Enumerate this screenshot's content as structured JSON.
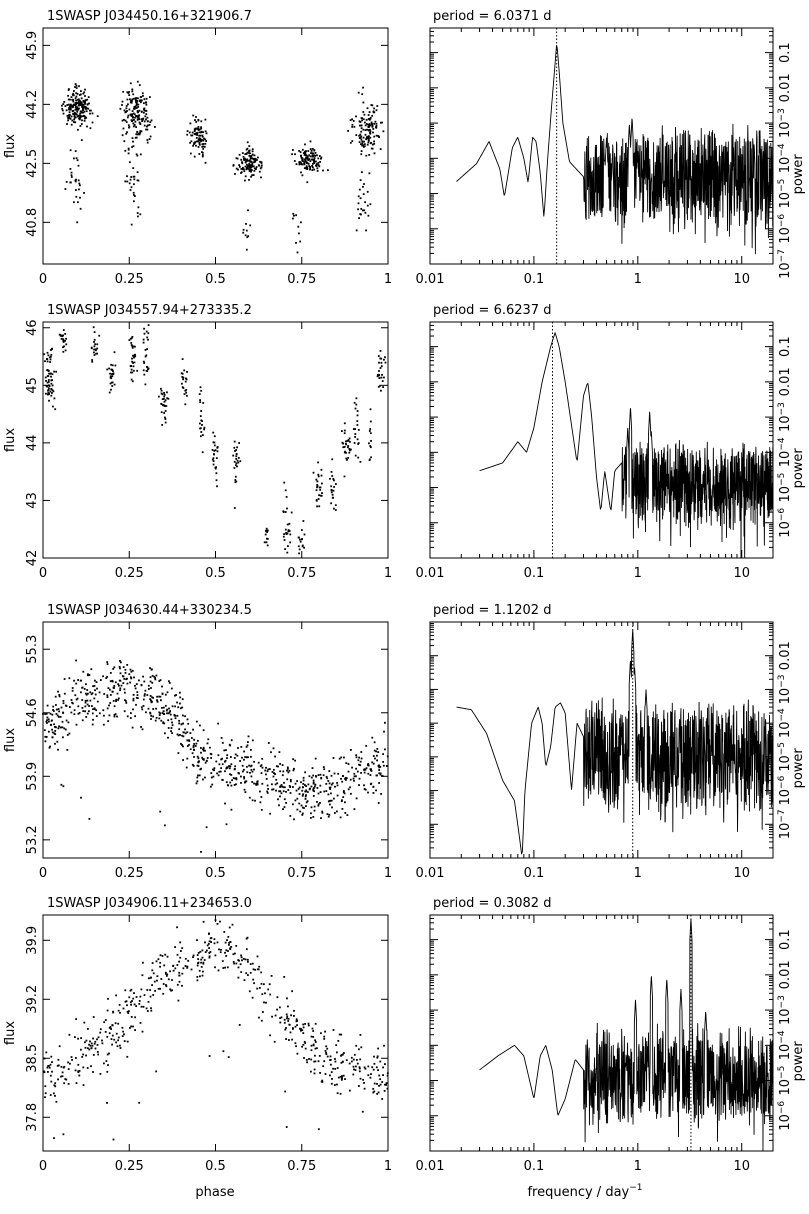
{
  "figure": {
    "x_label_left": "phase",
    "x_label_right_main": "frequency / day",
    "x_label_right_sup": "−1"
  },
  "chart_data": [
    {
      "type": "scatter",
      "title": "1SWASP  J034450.16+321906.7",
      "xlabel": "",
      "ylabel": "flux",
      "xlim": [
        0,
        1
      ],
      "ylim": [
        39.6,
        46.4
      ],
      "yticks": [
        40.8,
        42.5,
        44.2,
        45.9
      ],
      "xticks": [
        0,
        0.25,
        0.5,
        0.75,
        1
      ],
      "clusters": [
        {
          "x": 0.1,
          "y": 44.1,
          "sx": 0.03,
          "sy": 0.35,
          "n": 190
        },
        {
          "x": 0.09,
          "y": 41.8,
          "sx": 0.02,
          "sy": 0.8,
          "n": 30
        },
        {
          "x": 0.27,
          "y": 44.0,
          "sx": 0.03,
          "sy": 0.5,
          "n": 160
        },
        {
          "x": 0.26,
          "y": 42.2,
          "sx": 0.02,
          "sy": 1.0,
          "n": 40
        },
        {
          "x": 0.45,
          "y": 43.3,
          "sx": 0.02,
          "sy": 0.35,
          "n": 90
        },
        {
          "x": 0.6,
          "y": 42.5,
          "sx": 0.025,
          "sy": 0.3,
          "n": 120
        },
        {
          "x": 0.59,
          "y": 40.4,
          "sx": 0.01,
          "sy": 0.4,
          "n": 10
        },
        {
          "x": 0.77,
          "y": 42.6,
          "sx": 0.025,
          "sy": 0.3,
          "n": 120
        },
        {
          "x": 0.74,
          "y": 40.6,
          "sx": 0.01,
          "sy": 0.5,
          "n": 10
        },
        {
          "x": 0.94,
          "y": 43.5,
          "sx": 0.03,
          "sy": 0.55,
          "n": 130
        },
        {
          "x": 0.93,
          "y": 41.2,
          "sx": 0.02,
          "sy": 0.8,
          "n": 25
        }
      ]
    },
    {
      "type": "line",
      "title": "period =     6.0371  d",
      "xlabel": "",
      "ylabel": "power",
      "xscale": "log",
      "yscale": "log",
      "xlim": [
        0.01,
        20
      ],
      "ylim": [
        1e-07,
        0.5
      ],
      "xticks": [
        0.01,
        0.1,
        1,
        10
      ],
      "xticklabels": [
        "0.01",
        "0.1",
        "1",
        "10"
      ],
      "yticks": [
        1e-07,
        1e-06,
        1e-05,
        0.0001,
        0.001,
        0.01,
        0.1
      ],
      "period_marker": 0.1656,
      "smooth_control": [
        [
          0.018,
          2.2e-05
        ],
        [
          0.028,
          7e-05
        ],
        [
          0.037,
          0.0003
        ],
        [
          0.047,
          5e-05
        ],
        [
          0.052,
          8e-06
        ],
        [
          0.062,
          0.0002
        ],
        [
          0.07,
          0.0004
        ],
        [
          0.08,
          0.0001
        ],
        [
          0.088,
          2e-05
        ],
        [
          0.097,
          0.0004
        ],
        [
          0.105,
          0.0003
        ],
        [
          0.115,
          4e-05
        ],
        [
          0.125,
          2e-06
        ],
        [
          0.135,
          8e-05
        ],
        [
          0.148,
          0.003
        ],
        [
          0.16,
          0.05
        ],
        [
          0.166,
          0.2
        ],
        [
          0.175,
          0.03
        ],
        [
          0.19,
          0.001
        ],
        [
          0.22,
          8e-05
        ],
        [
          0.3,
          3e-05
        ]
      ],
      "noise_from": 0.3,
      "noise_level": 3e-05,
      "noise_spread": 1.6,
      "spikes": [
        [
          0.48,
          0.0001
        ],
        [
          0.5,
          0.0004
        ],
        [
          0.57,
          0.0001
        ],
        [
          0.83,
          0.001
        ],
        [
          0.88,
          0.0015
        ],
        [
          1.0,
          0.0001
        ]
      ]
    },
    {
      "type": "scatter",
      "title": "1SWASP  J034557.94+273335.2",
      "xlabel": "",
      "ylabel": "flux",
      "xlim": [
        0,
        1
      ],
      "ylim": [
        42,
        46.1
      ],
      "yticks": [
        42,
        43,
        44,
        45,
        46
      ],
      "xticks": [
        0,
        0.25,
        0.5,
        0.75,
        1
      ],
      "clusters": [
        {
          "x": 0.02,
          "y": 45.1,
          "sx": 0.01,
          "sy": 0.35,
          "n": 60
        },
        {
          "x": 0.06,
          "y": 45.8,
          "sx": 0.007,
          "sy": 0.15,
          "n": 20
        },
        {
          "x": 0.15,
          "y": 45.7,
          "sx": 0.008,
          "sy": 0.2,
          "n": 20
        },
        {
          "x": 0.2,
          "y": 45.2,
          "sx": 0.008,
          "sy": 0.25,
          "n": 25
        },
        {
          "x": 0.26,
          "y": 45.5,
          "sx": 0.008,
          "sy": 0.3,
          "n": 30
        },
        {
          "x": 0.3,
          "y": 45.5,
          "sx": 0.007,
          "sy": 0.4,
          "n": 25
        },
        {
          "x": 0.35,
          "y": 44.7,
          "sx": 0.01,
          "sy": 0.2,
          "n": 30
        },
        {
          "x": 0.41,
          "y": 45.1,
          "sx": 0.008,
          "sy": 0.3,
          "n": 20
        },
        {
          "x": 0.46,
          "y": 44.5,
          "sx": 0.008,
          "sy": 0.4,
          "n": 20
        },
        {
          "x": 0.5,
          "y": 43.8,
          "sx": 0.008,
          "sy": 0.3,
          "n": 25
        },
        {
          "x": 0.56,
          "y": 43.6,
          "sx": 0.008,
          "sy": 0.4,
          "n": 25
        },
        {
          "x": 0.65,
          "y": 42.4,
          "sx": 0.005,
          "sy": 0.1,
          "n": 12
        },
        {
          "x": 0.71,
          "y": 42.6,
          "sx": 0.008,
          "sy": 0.4,
          "n": 25
        },
        {
          "x": 0.75,
          "y": 42.3,
          "sx": 0.008,
          "sy": 0.25,
          "n": 15
        },
        {
          "x": 0.8,
          "y": 43.2,
          "sx": 0.008,
          "sy": 0.3,
          "n": 25
        },
        {
          "x": 0.84,
          "y": 43.1,
          "sx": 0.008,
          "sy": 0.4,
          "n": 20
        },
        {
          "x": 0.88,
          "y": 43.9,
          "sx": 0.008,
          "sy": 0.3,
          "n": 30
        },
        {
          "x": 0.91,
          "y": 44.1,
          "sx": 0.007,
          "sy": 0.5,
          "n": 20
        },
        {
          "x": 0.95,
          "y": 44.0,
          "sx": 0.006,
          "sy": 0.3,
          "n": 12
        },
        {
          "x": 0.98,
          "y": 45.3,
          "sx": 0.008,
          "sy": 0.3,
          "n": 25
        }
      ]
    },
    {
      "type": "line",
      "title": "period =     6.6237  d",
      "xlabel": "",
      "ylabel": "power",
      "xscale": "log",
      "yscale": "log",
      "xlim": [
        0.01,
        20
      ],
      "ylim": [
        1e-07,
        0.5
      ],
      "xticks": [
        0.01,
        0.1,
        1,
        10
      ],
      "xticklabels": [
        "0.01",
        "0.1",
        "1",
        "10"
      ],
      "yticks": [
        1e-06,
        1e-05,
        0.0001,
        0.001,
        0.01,
        0.1
      ],
      "period_marker": 0.151,
      "smooth_control": [
        [
          0.03,
          3e-05
        ],
        [
          0.05,
          5e-05
        ],
        [
          0.07,
          0.0002
        ],
        [
          0.085,
          0.0001
        ],
        [
          0.1,
          0.0005
        ],
        [
          0.12,
          0.01
        ],
        [
          0.145,
          0.1
        ],
        [
          0.16,
          0.25
        ],
        [
          0.175,
          0.1
        ],
        [
          0.2,
          0.01
        ],
        [
          0.23,
          0.0006
        ],
        [
          0.26,
          5e-05
        ],
        [
          0.3,
          0.004
        ],
        [
          0.33,
          0.01
        ],
        [
          0.36,
          0.001
        ],
        [
          0.4,
          2e-05
        ],
        [
          0.44,
          2e-06
        ],
        [
          0.48,
          3e-05
        ],
        [
          0.55,
          2e-06
        ],
        [
          0.6,
          3e-05
        ],
        [
          0.7,
          5e-05
        ]
      ],
      "noise_from": 0.7,
      "noise_level": 1.5e-05,
      "noise_spread": 1.3,
      "spikes": [
        [
          0.8,
          0.0005
        ],
        [
          0.85,
          0.002
        ],
        [
          1.3,
          0.0015
        ],
        [
          1.35,
          0.0004
        ]
      ]
    },
    {
      "type": "scatter",
      "title": "1SWASP  J034630.44+330234.5",
      "xlabel": "",
      "ylabel": "flux",
      "xlim": [
        0,
        1
      ],
      "ylim": [
        53.0,
        55.6
      ],
      "yticks": [
        53.2,
        53.9,
        54.6,
        55.3
      ],
      "xticks": [
        0,
        0.25,
        0.5,
        0.75,
        1
      ],
      "trend": [
        [
          0,
          54.45
        ],
        [
          0.1,
          54.7
        ],
        [
          0.22,
          54.9
        ],
        [
          0.3,
          54.8
        ],
        [
          0.4,
          54.5
        ],
        [
          0.45,
          54.1
        ],
        [
          0.55,
          53.95
        ],
        [
          0.65,
          53.95
        ],
        [
          0.75,
          53.75
        ],
        [
          0.85,
          53.75
        ],
        [
          0.95,
          54.0
        ],
        [
          1.0,
          54.1
        ]
      ],
      "scatter_sd": 0.28,
      "n_points": 900
    },
    {
      "type": "line",
      "title": "period =     1.1202  d",
      "xlabel": "",
      "ylabel": "power",
      "xscale": "log",
      "yscale": "log",
      "xlim": [
        0.01,
        20
      ],
      "ylim": [
        1e-08,
        0.1
      ],
      "xticks": [
        0.01,
        0.1,
        1,
        10
      ],
      "xticklabels": [
        "0.01",
        "0.1",
        "1",
        "10"
      ],
      "yticks": [
        1e-07,
        1e-06,
        1e-05,
        0.0001,
        0.001,
        0.01
      ],
      "period_marker": 0.893,
      "smooth_control": [
        [
          0.018,
          0.0003
        ],
        [
          0.025,
          0.00025
        ],
        [
          0.035,
          5e-05
        ],
        [
          0.05,
          2e-06
        ],
        [
          0.065,
          5e-07
        ],
        [
          0.072,
          5e-08
        ],
        [
          0.077,
          1e-08
        ],
        [
          0.082,
          1e-06
        ],
        [
          0.095,
          0.0001
        ],
        [
          0.11,
          0.0003
        ],
        [
          0.12,
          0.0001
        ],
        [
          0.13,
          5e-06
        ],
        [
          0.145,
          2e-05
        ],
        [
          0.16,
          0.0003
        ],
        [
          0.18,
          0.0004
        ],
        [
          0.2,
          0.0002
        ],
        [
          0.23,
          1e-06
        ],
        [
          0.26,
          0.0001
        ],
        [
          0.3,
          4e-05
        ]
      ],
      "noise_from": 0.3,
      "noise_level": 1.2e-05,
      "noise_spread": 1.8,
      "spikes": [
        [
          0.85,
          0.008
        ],
        [
          0.893,
          0.06
        ],
        [
          0.93,
          0.005
        ],
        [
          1.2,
          0.001
        ]
      ]
    },
    {
      "type": "scatter",
      "title": "1SWASP  J034906.11+234653.0",
      "xlabel": "",
      "ylabel": "flux",
      "xlim": [
        0,
        1
      ],
      "ylim": [
        37.4,
        40.2
      ],
      "yticks": [
        37.8,
        38.5,
        39.2,
        39.9
      ],
      "xticks": [
        0,
        0.25,
        0.5,
        0.75,
        1
      ],
      "trend": [
        [
          0,
          38.3
        ],
        [
          0.1,
          38.45
        ],
        [
          0.2,
          38.8
        ],
        [
          0.3,
          39.3
        ],
        [
          0.4,
          39.6
        ],
        [
          0.5,
          39.85
        ],
        [
          0.6,
          39.6
        ],
        [
          0.7,
          39.0
        ],
        [
          0.8,
          38.5
        ],
        [
          0.9,
          38.4
        ],
        [
          1.0,
          38.3
        ]
      ],
      "scatter_sd": 0.3,
      "n_points": 600
    },
    {
      "type": "line",
      "title": "period =     0.3082  d",
      "xlabel": "",
      "ylabel": "power",
      "xscale": "log",
      "yscale": "log",
      "xlim": [
        0.01,
        20
      ],
      "ylim": [
        1e-07,
        0.5
      ],
      "xticks": [
        0.01,
        0.1,
        1,
        10
      ],
      "xticklabels": [
        "0.01",
        "0.1",
        "1",
        "10"
      ],
      "yticks": [
        1e-06,
        1e-05,
        0.0001,
        0.001,
        0.01,
        0.1
      ],
      "period_marker": 3.245,
      "smooth_control": [
        [
          0.03,
          2e-05
        ],
        [
          0.045,
          5e-05
        ],
        [
          0.065,
          0.0001
        ],
        [
          0.08,
          5e-05
        ],
        [
          0.1,
          3e-06
        ],
        [
          0.115,
          5e-05
        ],
        [
          0.13,
          0.0001
        ],
        [
          0.15,
          2e-05
        ],
        [
          0.17,
          1e-06
        ],
        [
          0.2,
          3e-06
        ],
        [
          0.25,
          4e-05
        ],
        [
          0.3,
          2e-05
        ]
      ],
      "noise_from": 0.3,
      "noise_level": 1.5e-05,
      "noise_spread": 1.5,
      "spikes": [
        [
          0.95,
          0.002
        ],
        [
          1.35,
          0.01
        ],
        [
          1.9,
          0.008
        ],
        [
          2.6,
          0.004
        ],
        [
          3.245,
          0.4
        ],
        [
          4.5,
          0.001
        ]
      ]
    }
  ]
}
